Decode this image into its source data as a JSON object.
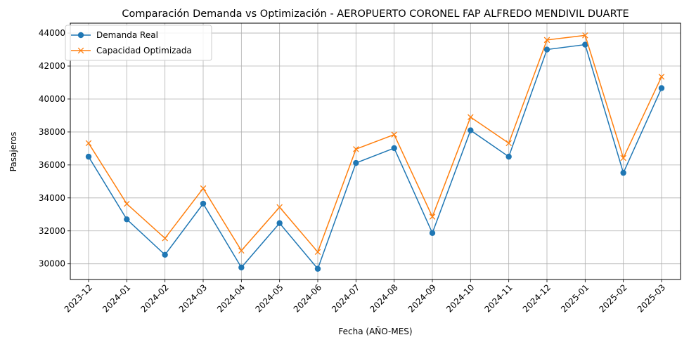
{
  "chart_data": {
    "type": "line",
    "title": "Comparación Demanda vs Optimización - AEROPUERTO CORONEL FAP ALFREDO MENDIVIL DUARTE",
    "xlabel": "Fecha (AÑO-MES)",
    "ylabel": "Pasajeros",
    "categories": [
      "2023-12",
      "2024-01",
      "2024-02",
      "2024-03",
      "2024-04",
      "2024-05",
      "2024-06",
      "2024-07",
      "2024-08",
      "2024-09",
      "2024-10",
      "2024-11",
      "2024-12",
      "2025-01",
      "2025-02",
      "2025-03"
    ],
    "yticks": [
      "30000",
      "32000",
      "34000",
      "36000",
      "38000",
      "40000",
      "42000",
      "44000"
    ],
    "ylim": [
      29050,
      44600
    ],
    "grid": true,
    "legend_position": "top-left",
    "series": [
      {
        "name": "Demanda Real",
        "color": "#1f77b4",
        "marker": "circle",
        "values": [
          36500,
          32700,
          30550,
          33650,
          29780,
          32470,
          29700,
          36120,
          37020,
          31870,
          38100,
          36500,
          43000,
          43300,
          35520,
          40660
        ]
      },
      {
        "name": "Capacidad Optimizada",
        "color": "#ff7f0e",
        "marker": "x",
        "values": [
          37320,
          33640,
          31550,
          34580,
          30800,
          33440,
          30720,
          36960,
          37840,
          32860,
          38900,
          37320,
          43580,
          43860,
          36420,
          41350
        ]
      }
    ]
  }
}
